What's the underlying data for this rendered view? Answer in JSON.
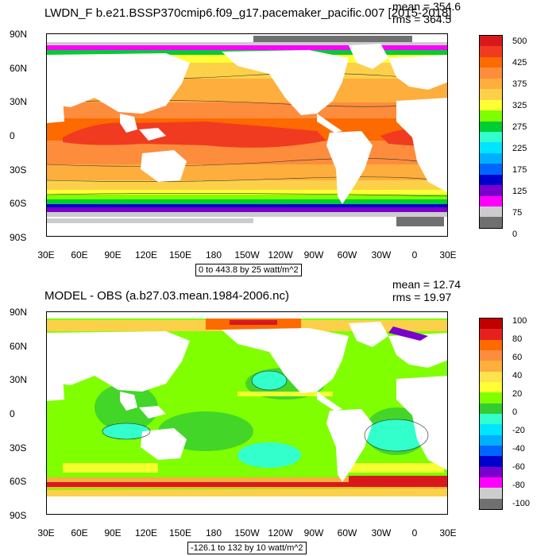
{
  "top": {
    "title": "LWDN_F b.e21.BSSP370cmip6.f09_g17.pacemaker_pacific.007 [2015-2018]",
    "mean": "mean = 354.6",
    "rms": "rms = 364.5",
    "range": "0 to 443.8 by 25 watt/m^2",
    "lat_labels": [
      "90N",
      "60N",
      "30N",
      "0",
      "30S",
      "60S",
      "90S"
    ],
    "lon_labels": [
      "30E",
      "60E",
      "90E",
      "120E",
      "150E",
      "180",
      "150W",
      "120W",
      "90W",
      "60W",
      "30W",
      "0",
      "30E"
    ],
    "colorbar_labels": [
      "500",
      "425",
      "375",
      "325",
      "275",
      "225",
      "175",
      "125",
      "75",
      "0"
    ],
    "colors": [
      "#d7191c",
      "#f03b20",
      "#fd6a00",
      "#fd8d3c",
      "#fdae3c",
      "#fdd049",
      "#ffff33",
      "#80ff00",
      "#00cc33",
      "#33ffcc",
      "#00e5ff",
      "#00b0ff",
      "#0066ff",
      "#0000cc",
      "#7a00cc",
      "#ff00ff",
      "#cccccc",
      "#707070"
    ]
  },
  "bottom": {
    "title": "MODEL - OBS (a.b27.03.mean.1984-2006.nc)",
    "mean": "mean = 12.74",
    "rms": "rms = 19.97",
    "range": "-126.1 to 132 by 10 watt/m^2",
    "lat_labels": [
      "90N",
      "60N",
      "30N",
      "0",
      "30S",
      "60S",
      "90S"
    ],
    "lon_labels": [
      "30E",
      "60E",
      "90E",
      "120E",
      "150E",
      "180",
      "150W",
      "120W",
      "90W",
      "60W",
      "30W",
      "0",
      "30E"
    ],
    "colorbar_labels": [
      "100",
      "80",
      "60",
      "40",
      "20",
      "0",
      "-20",
      "-40",
      "-60",
      "-80",
      "-100"
    ],
    "colors": [
      "#c00000",
      "#e62020",
      "#fd6a00",
      "#fd8d3c",
      "#fdae3c",
      "#ffe34d",
      "#ffff33",
      "#80ff00",
      "#33cc33",
      "#33ffcc",
      "#00e5ff",
      "#00b0ff",
      "#0066ff",
      "#0000cc",
      "#7a00cc",
      "#ff00ff",
      "#cccccc",
      "#707070"
    ]
  }
}
